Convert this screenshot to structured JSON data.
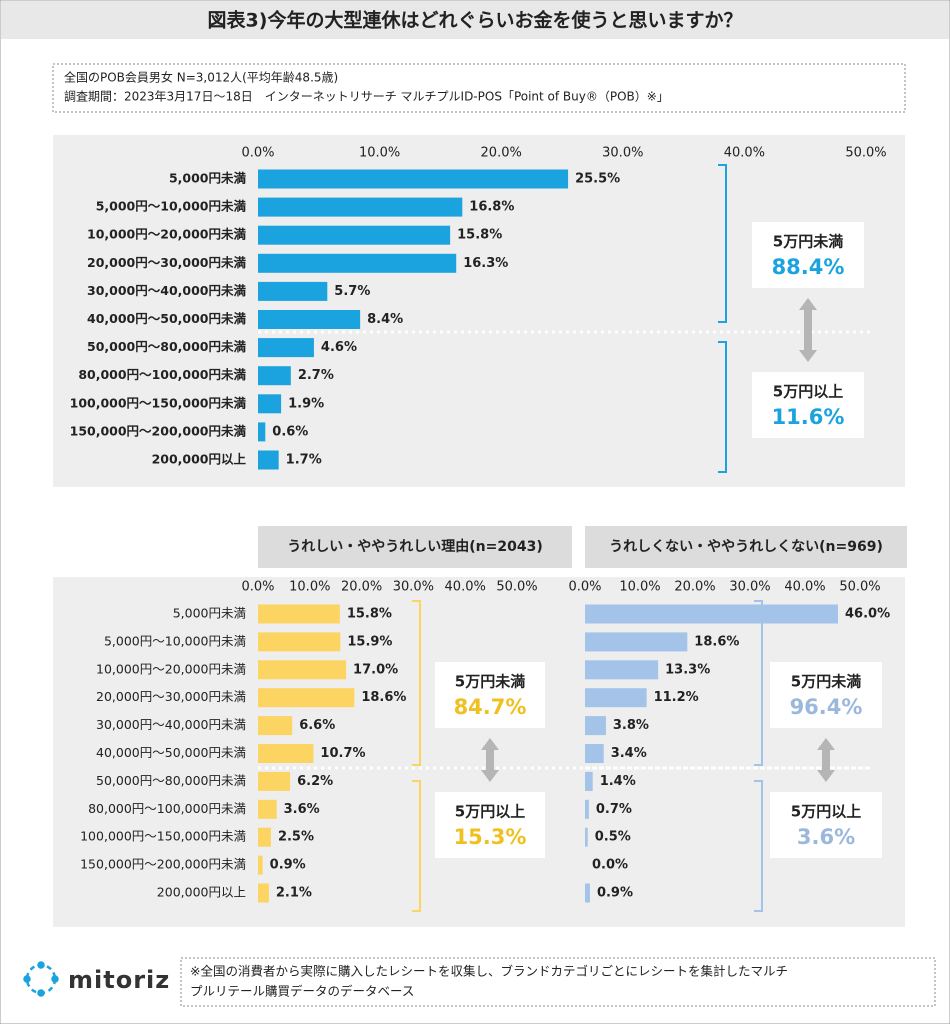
{
  "header": {
    "title": "図表3)今年の大型連休はどれぐらいお金を使うと思いますか？",
    "notes": [
      "全国のPOB会員男女 N=3,012人(平均年齢48.5歳)",
      "調査期間：2023年3月17日～18日　インターネットリサーチ マルチプルID-POS「Point of Buy®（POB）※」"
    ]
  },
  "chart_data": [
    {
      "type": "bar",
      "orientation": "horizontal",
      "categories": [
        "5,000円未満",
        "5,000円～10,000円未満",
        "10,000円～20,000円未満",
        "20,000円～30,000円未満",
        "30,000円～40,000円未満",
        "40,000円～50,000円未満",
        "50,000円～80,000円未満",
        "80,000円～100,000円未満",
        "100,000円～150,000円未満",
        "150,000円～200,000円未満",
        "200,000円以上"
      ],
      "values": [
        25.5,
        16.8,
        15.8,
        16.3,
        5.7,
        8.4,
        4.6,
        2.7,
        1.9,
        0.6,
        1.7
      ],
      "value_labels": [
        "25.5%",
        "16.8%",
        "15.8%",
        "16.3%",
        "5.7%",
        "8.4%",
        "4.6%",
        "2.7%",
        "1.9%",
        "0.6%",
        "1.7%"
      ],
      "color": "#1aa3df",
      "xlim": [
        0,
        50
      ],
      "xticks": [
        {
          "value": 0,
          "label": "0.0%"
        },
        {
          "value": 10,
          "label": "10.0%"
        },
        {
          "value": 20,
          "label": "20.0%"
        },
        {
          "value": 30,
          "label": "30.0%"
        },
        {
          "value": 40,
          "label": "40.0%"
        },
        {
          "value": 50,
          "label": "50.0%"
        }
      ],
      "annotations": [
        {
          "label": "5万円未満",
          "text": "88.4%"
        },
        {
          "label": "5万円以上",
          "text": "11.6%"
        }
      ],
      "annotation_color": "#1aa3df"
    },
    {
      "type": "bar",
      "orientation": "horizontal",
      "subtitle": "うれしい・ややうれしい理由(n=2043)",
      "categories": [
        "5,000円未満",
        "5,000円～10,000円未満",
        "10,000円～20,000円未満",
        "20,000円～30,000円未満",
        "30,000円～40,000円未満",
        "40,000円～50,000円未満",
        "50,000円～80,000円未満",
        "80,000円～100,000円未満",
        "100,000円～150,000円未満",
        "150,000円～200,000円未満",
        "200,000円以上"
      ],
      "values": [
        15.8,
        15.9,
        17.0,
        18.6,
        6.6,
        10.7,
        6.2,
        3.6,
        2.5,
        0.9,
        2.1
      ],
      "value_labels": [
        "15.8%",
        "15.9%",
        "17.0%",
        "18.6%",
        "6.6%",
        "10.7%",
        "6.2%",
        "3.6%",
        "2.5%",
        "0.9%",
        "2.1%"
      ],
      "color": "#fcd462",
      "xlim": [
        0,
        50
      ],
      "xticks": [
        {
          "value": 0,
          "label": "0.0%"
        },
        {
          "value": 10,
          "label": "10.0%"
        },
        {
          "value": 20,
          "label": "20.0%"
        },
        {
          "value": 30,
          "label": "30.0%"
        },
        {
          "value": 40,
          "label": "40.0%"
        },
        {
          "value": 50,
          "label": "50.0%"
        }
      ],
      "annotations": [
        {
          "label": "5万円未満",
          "text": "84.7%"
        },
        {
          "label": "5万円以上",
          "text": "15.3%"
        }
      ],
      "annotation_color": "#f0c020"
    },
    {
      "type": "bar",
      "orientation": "horizontal",
      "subtitle": "うれしくない・ややうれしくない(n=969)",
      "values": [
        46.0,
        18.6,
        13.3,
        11.2,
        3.8,
        3.4,
        1.4,
        0.7,
        0.5,
        0.0,
        0.9
      ],
      "value_labels": [
        "46.0%",
        "18.6%",
        "13.3%",
        "11.2%",
        "3.8%",
        "3.4%",
        "1.4%",
        "0.7%",
        "0.5%",
        "0.0%",
        "0.9%"
      ],
      "color": "#a3c3e8",
      "xlim": [
        0,
        50
      ],
      "xticks": [
        {
          "value": 0,
          "label": "0.0%"
        },
        {
          "value": 10,
          "label": "10.0%"
        },
        {
          "value": 20,
          "label": "20.0%"
        },
        {
          "value": 30,
          "label": "30.0%"
        },
        {
          "value": 40,
          "label": "40.0%"
        },
        {
          "value": 50,
          "label": "50.0%"
        }
      ],
      "annotations": [
        {
          "label": "5万円未満",
          "text": "96.4%"
        },
        {
          "label": "5万円以上",
          "text": "3.6%"
        }
      ],
      "annotation_color": "#9ab8dc"
    }
  ],
  "footer": {
    "logo": "mitoriz",
    "notes": [
      "※全国の消費者から実際に購入したレシートを収集し、ブランドカテゴリごとにレシートを集計したマルチ",
      "プルリテール購買データのデータベース"
    ]
  }
}
